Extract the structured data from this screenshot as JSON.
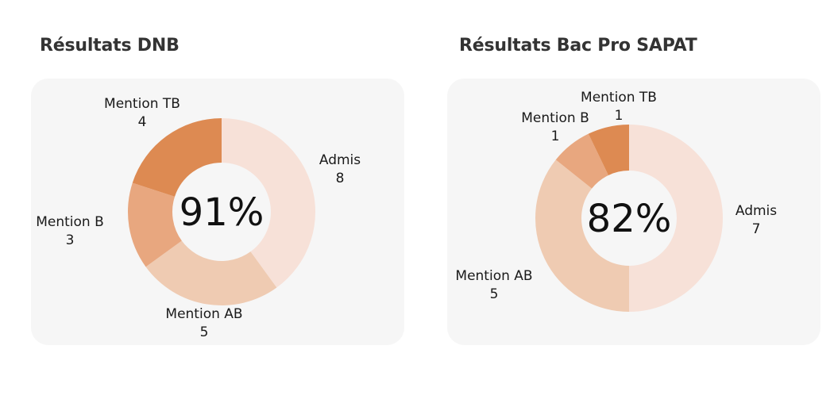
{
  "charts": [
    {
      "title": "Résultats DNB",
      "center_text": "91%"
    },
    {
      "title": "Résultats Bac Pro SAPAT",
      "center_text": "82%"
    }
  ],
  "chart_data": [
    {
      "type": "pie",
      "donut": true,
      "title": "Résultats DNB",
      "center_text": "91%",
      "categories": [
        "Admis",
        "Mention AB",
        "Mention B",
        "Mention TB"
      ],
      "values": [
        8,
        5,
        3,
        4
      ],
      "colors": [
        "#f7e1d8",
        "#efcbb2",
        "#e8a77f",
        "#dd8a52"
      ]
    },
    {
      "type": "pie",
      "donut": true,
      "title": "Résultats Bac Pro SAPAT",
      "center_text": "82%",
      "categories": [
        "Admis",
        "Mention AB",
        "Mention B",
        "Mention TB"
      ],
      "values": [
        7,
        5,
        1,
        1
      ],
      "colors": [
        "#f7e1d8",
        "#efcbb2",
        "#e8a77f",
        "#dd8a52"
      ]
    }
  ]
}
